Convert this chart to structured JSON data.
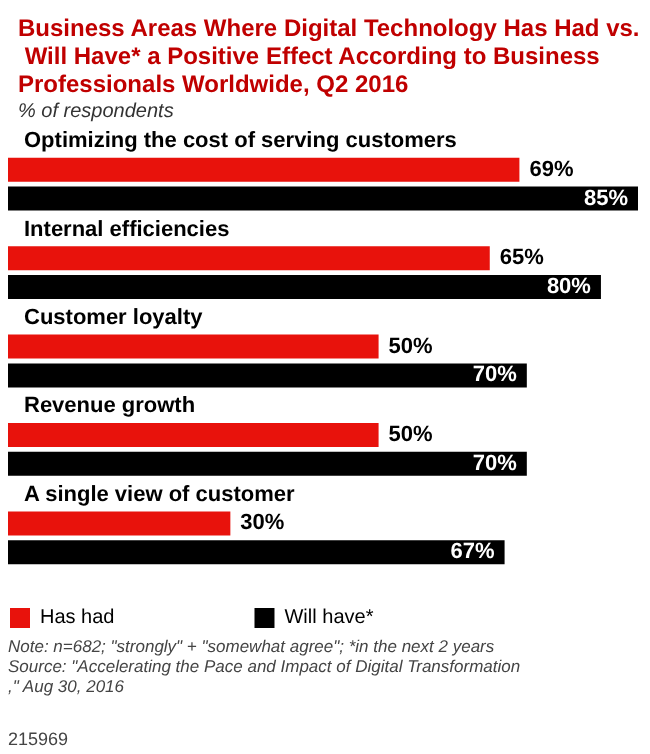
{
  "chart_data": {
    "type": "bar",
    "orientation": "horizontal",
    "title": "Business Areas Where Digital Technology Has Had vs. Will Have* a Positive Effect According to Business Professionals Worldwide, Q2 2016",
    "subtitle": "% of respondents",
    "categories": [
      "Optimizing the cost of serving customers",
      "Internal efficiencies",
      "Customer loyalty",
      "Revenue growth",
      "A single view of customer"
    ],
    "series": [
      {
        "name": "Has had",
        "color": "#e8120c",
        "values": [
          69,
          65,
          50,
          50,
          30
        ],
        "value_labels": [
          "69%",
          "65%",
          "50%",
          "50%",
          "30%"
        ]
      },
      {
        "name": "Will have*",
        "color": "#000000",
        "values": [
          85,
          80,
          70,
          70,
          67
        ],
        "value_labels": [
          "85%",
          "80%",
          "70%",
          "70%",
          "67%"
        ]
      }
    ],
    "legend": "bottom",
    "grid": false,
    "annotations": [
      "Note: n=682; \"strongly\" + \"somewhat agree\"; *in the next 2 years",
      "Source: \"Accelerating the Pace and Impact of Digital Transformation,\" Aug 30, 2016",
      "215969"
    ]
  }
}
